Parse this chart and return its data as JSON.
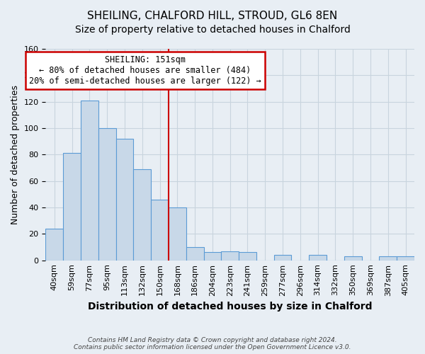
{
  "title": "SHEILING, CHALFORD HILL, STROUD, GL6 8EN",
  "subtitle": "Size of property relative to detached houses in Chalford",
  "xlabel": "Distribution of detached houses by size in Chalford",
  "ylabel": "Number of detached properties",
  "bar_labels": [
    "40sqm",
    "59sqm",
    "77sqm",
    "95sqm",
    "113sqm",
    "132sqm",
    "150sqm",
    "168sqm",
    "186sqm",
    "204sqm",
    "223sqm",
    "241sqm",
    "259sqm",
    "277sqm",
    "296sqm",
    "314sqm",
    "332sqm",
    "350sqm",
    "369sqm",
    "387sqm",
    "405sqm"
  ],
  "bar_heights": [
    24,
    81,
    121,
    100,
    92,
    69,
    46,
    40,
    10,
    6,
    7,
    6,
    0,
    4,
    0,
    4,
    0,
    3,
    0,
    3,
    3
  ],
  "bar_color": "#c8d8e8",
  "bar_edge_color": "#5b9bd5",
  "vline_color": "#cc0000",
  "vline_index": 6,
  "ylim": [
    0,
    160
  ],
  "yticks": [
    0,
    20,
    40,
    60,
    80,
    100,
    120,
    140,
    160
  ],
  "annotation_line1": "SHEILING: 151sqm",
  "annotation_line2": "← 80% of detached houses are smaller (484)",
  "annotation_line3": "20% of semi-detached houses are larger (122) →",
  "annotation_box_color": "#ffffff",
  "annotation_box_edge": "#cc0000",
  "footer1": "Contains HM Land Registry data © Crown copyright and database right 2024.",
  "footer2": "Contains public sector information licensed under the Open Government Licence v3.0.",
  "background_color": "#e8eef4",
  "plot_background": "#e8eef4",
  "grid_color": "#c8d4de",
  "title_fontsize": 11,
  "subtitle_fontsize": 10
}
